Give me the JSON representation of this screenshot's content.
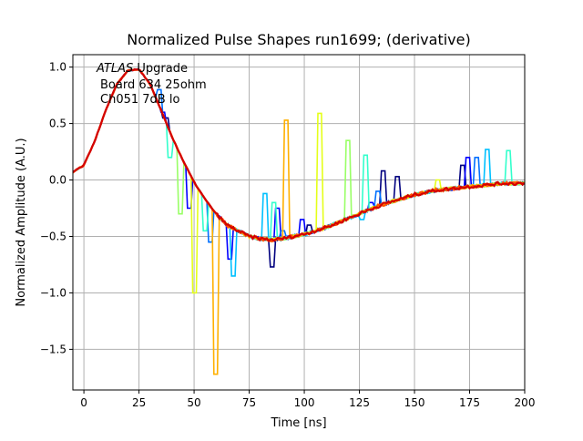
{
  "chart_data": {
    "type": "line",
    "title": "Normalized Pulse Shapes run1699; (derivative)",
    "xlabel": "Time [ns]",
    "ylabel": "Normalized Amplitude (A.U.)",
    "xlim": [
      -5,
      200
    ],
    "ylim": [
      -1.86,
      1.11
    ],
    "grid": true,
    "xticks": [
      0,
      25,
      50,
      75,
      100,
      125,
      150,
      175,
      200
    ],
    "xtick_labels": [
      "0",
      "25",
      "50",
      "75",
      "100",
      "125",
      "150",
      "175",
      "200"
    ],
    "yticks": [
      1.0,
      0.5,
      0.0,
      -0.5,
      -1.0,
      -1.5
    ],
    "ytick_labels": [
      "1.0",
      "0.5",
      "0.0",
      "−0.5",
      "−1.0",
      "−1.5"
    ],
    "annotation": {
      "line1_italic": "ATLAS",
      "line1_rest": " Upgrade",
      "line2": "Board 634 25ohm",
      "line3": "Ch051 7dB lo"
    },
    "base_x": [
      -5,
      0,
      5,
      10,
      15,
      20,
      25,
      30,
      35,
      40,
      45,
      50,
      55,
      60,
      65,
      70,
      75,
      80,
      85,
      90,
      95,
      100,
      105,
      110,
      115,
      120,
      125,
      130,
      135,
      140,
      145,
      150,
      155,
      160,
      165,
      170,
      175,
      180,
      185,
      190,
      195,
      200
    ],
    "base_y": [
      0.07,
      0.13,
      0.35,
      0.62,
      0.85,
      0.97,
      0.98,
      0.85,
      0.62,
      0.38,
      0.17,
      -0.02,
      -0.17,
      -0.3,
      -0.4,
      -0.45,
      -0.5,
      -0.52,
      -0.53,
      -0.52,
      -0.5,
      -0.48,
      -0.45,
      -0.42,
      -0.38,
      -0.34,
      -0.3,
      -0.26,
      -0.22,
      -0.19,
      -0.16,
      -0.13,
      -0.11,
      -0.09,
      -0.08,
      -0.07,
      -0.06,
      -0.05,
      -0.04,
      -0.03,
      -0.03,
      -0.03
    ],
    "series": [
      {
        "color": "#00007f",
        "spikes": [
          [
            37,
            0.55
          ],
          [
            85,
            -0.77
          ],
          [
            102,
            -0.4
          ],
          [
            112,
            -0.4
          ],
          [
            136,
            0.08
          ],
          [
            142,
            0.03
          ],
          [
            172,
            0.13
          ]
        ]
      },
      {
        "color": "#0000ff",
        "spikes": [
          [
            36,
            0.6
          ],
          [
            48,
            -0.25
          ],
          [
            66,
            -0.7
          ],
          [
            88,
            -0.25
          ],
          [
            99,
            -0.35
          ],
          [
            130,
            -0.2
          ],
          [
            174,
            0.2
          ]
        ]
      },
      {
        "color": "#0070ff",
        "spikes": [
          [
            34,
            0.8
          ],
          [
            57,
            -0.55
          ],
          [
            90,
            -0.45
          ],
          [
            133,
            -0.1
          ],
          [
            178,
            0.2
          ]
        ]
      },
      {
        "color": "#00c0ff",
        "spikes": [
          [
            68,
            -0.85
          ],
          [
            82,
            -0.12
          ],
          [
            126,
            -0.35
          ],
          [
            183,
            0.27
          ]
        ]
      },
      {
        "color": "#33ffcc",
        "spikes": [
          [
            39,
            0.2
          ],
          [
            55,
            -0.45
          ],
          [
            86,
            -0.2
          ],
          [
            128,
            0.22
          ],
          [
            193,
            0.26
          ]
        ]
      },
      {
        "color": "#99ff66",
        "spikes": [
          [
            44,
            -0.3
          ],
          [
            120,
            0.35
          ]
        ]
      },
      {
        "color": "#e5ff19",
        "spikes": [
          [
            50,
            -1.0
          ],
          [
            107,
            0.59
          ],
          [
            161,
            0.0
          ]
        ]
      },
      {
        "color": "#ffb000",
        "spikes": [
          [
            60,
            -1.72
          ],
          [
            92,
            0.53
          ]
        ]
      },
      {
        "color": "#ff5000",
        "spikes": []
      },
      {
        "color": "#d40000",
        "spikes": []
      }
    ]
  }
}
